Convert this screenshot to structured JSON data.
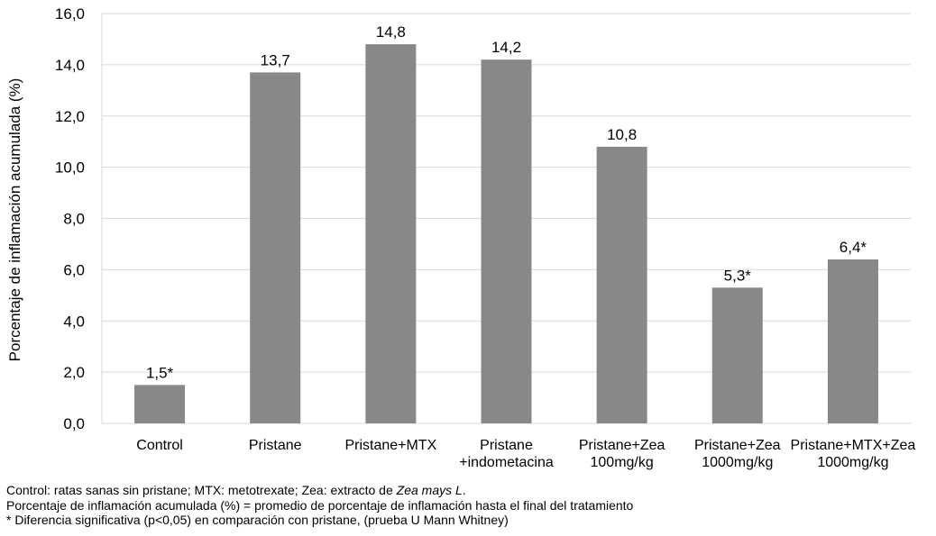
{
  "chart_data": {
    "type": "bar",
    "categories": [
      [
        "Control"
      ],
      [
        "Pristane"
      ],
      [
        "Pristane+MTX"
      ],
      [
        "Pristane",
        "+indometacina"
      ],
      [
        "Pristane+Zea",
        "100mg/kg"
      ],
      [
        "Pristane+Zea",
        "1000mg/kg"
      ],
      [
        "Pristane+MTX+Zea",
        "1000mg/kg"
      ]
    ],
    "values": [
      1.5,
      13.7,
      14.8,
      14.2,
      10.8,
      5.3,
      6.4
    ],
    "data_labels": [
      "1,5*",
      "13,7",
      "14,8",
      "14,2",
      "10,8",
      "5,3*",
      "6,4*"
    ],
    "title": "",
    "xlabel": "",
    "ylabel": "Porcentaje de inflamación acumulada (%)",
    "ylim": [
      0,
      16
    ],
    "yticks": [
      "0,0",
      "2,0",
      "4,0",
      "6,0",
      "8,0",
      "10,0",
      "12,0",
      "14,0",
      "16,0"
    ],
    "grid": true,
    "bar_color": "#888888",
    "grid_color": "#d9d9d9"
  },
  "notes": {
    "line1_prefix": "Control: ratas sanas sin pristane; MTX: metotrexate; Zea: extracto de ",
    "line1_italic": "Zea mays L",
    "line1_suffix": ".",
    "line2": "Porcentaje de inflamación acumulada (%) = promedio de porcentaje de inflamación hasta el final del tratamiento",
    "line3": "* Diferencia significativa (p<0,05) en comparación con pristane, (prueba U Mann Whitney)"
  }
}
